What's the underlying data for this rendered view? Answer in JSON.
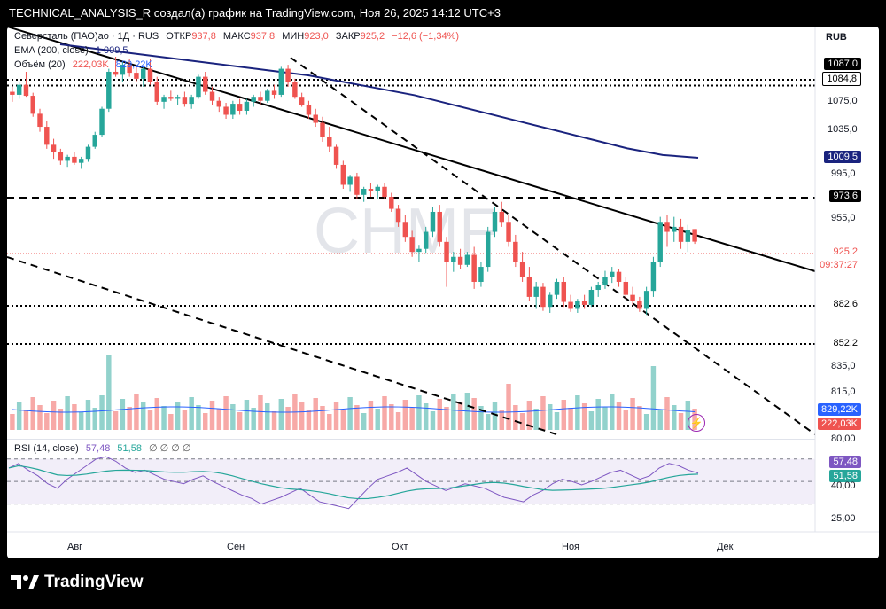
{
  "header": {
    "title": "TECHNICAL_ANALYSIS_R создал(а) график на TradingView.com, Ноя 26, 2025 14:12 UTC+3"
  },
  "legend": {
    "symbol": "Северсталь (ПАО)ао · 1Д · RUS",
    "open_label": "ОТКР",
    "open": "937,8",
    "high_label": "МАКС",
    "high": "937,8",
    "low_label": "МИН",
    "low": "923,0",
    "close_label": "ЗАКР",
    "close": "925,2",
    "change": "−12,6 (−1,34%)",
    "ema_label": "EMA (200, close)",
    "ema_value": "1 009,5",
    "vol_label": "Объём (20)",
    "vol_value": "222,03K",
    "vol_ma": "829,22K",
    "rsi_label": "RSI (14, close)",
    "rsi_value": "57,48",
    "rsi_ma": "51,58",
    "rsi_extra": "∅ ∅ ∅ ∅"
  },
  "currency": "RUB",
  "watermark": "CHMF",
  "price_axis": {
    "ticks": [
      "1075,0",
      "1035,0",
      "995,0",
      "955,0",
      "835,0",
      "815,0",
      "80,00",
      "40,00",
      "25,00"
    ],
    "boxes": [
      "1087,0",
      "1084,8",
      "1009,5",
      "973,6",
      "925,2",
      "09:37:27",
      "882,6",
      "852,2",
      "829,22K",
      "222,03K",
      "57,48",
      "51,58"
    ]
  },
  "time_axis": [
    "Авг",
    "Сен",
    "Окт",
    "Ноя",
    "Дек"
  ],
  "footer": {
    "brand": "TradingView"
  },
  "colors": {
    "up": "#26a69a",
    "down": "#ef5350",
    "ema": "#1a237e",
    "vol_ma": "#2962ff",
    "rsi": "#7e57c2",
    "rsi_ma": "#26a69a",
    "close_line": "#ef5350"
  },
  "chart_data": {
    "type": "candlestick",
    "title": "Северсталь (ПАО)ао · 1Д · RUS",
    "price_range": [
      800,
      1100
    ],
    "x_labels": [
      "Авг",
      "Сен",
      "Окт",
      "Ноя",
      "Дек"
    ],
    "candles": [
      [
        1075,
        1080,
        1065,
        1072
      ],
      [
        1072,
        1085,
        1068,
        1082
      ],
      [
        1082,
        1095,
        1070,
        1071
      ],
      [
        1071,
        1074,
        1050,
        1053
      ],
      [
        1053,
        1058,
        1035,
        1040
      ],
      [
        1040,
        1046,
        1018,
        1022
      ],
      [
        1022,
        1028,
        1008,
        1015
      ],
      [
        1015,
        1018,
        1002,
        1006
      ],
      [
        1006,
        1012,
        1000,
        1010
      ],
      [
        1010,
        1015,
        1002,
        1004
      ],
      [
        1004,
        1010,
        998,
        1008
      ],
      [
        1008,
        1022,
        1005,
        1020
      ],
      [
        1020,
        1035,
        1018,
        1032
      ],
      [
        1032,
        1060,
        1030,
        1058
      ],
      [
        1058,
        1098,
        1055,
        1095
      ],
      [
        1095,
        1110,
        1090,
        1092
      ],
      [
        1092,
        1105,
        1085,
        1102
      ],
      [
        1102,
        1108,
        1090,
        1094
      ],
      [
        1094,
        1100,
        1085,
        1088
      ],
      [
        1088,
        1100,
        1080,
        1098
      ],
      [
        1098,
        1108,
        1082,
        1085
      ],
      [
        1085,
        1090,
        1062,
        1065
      ],
      [
        1065,
        1072,
        1058,
        1070
      ],
      [
        1070,
        1076,
        1066,
        1068
      ],
      [
        1068,
        1072,
        1062,
        1070
      ],
      [
        1070,
        1075,
        1060,
        1063
      ],
      [
        1063,
        1072,
        1058,
        1070
      ],
      [
        1070,
        1092,
        1068,
        1090
      ],
      [
        1090,
        1095,
        1072,
        1075
      ],
      [
        1075,
        1080,
        1062,
        1066
      ],
      [
        1066,
        1070,
        1055,
        1060
      ],
      [
        1060,
        1064,
        1048,
        1052
      ],
      [
        1052,
        1066,
        1048,
        1063
      ],
      [
        1063,
        1068,
        1052,
        1056
      ],
      [
        1056,
        1068,
        1052,
        1065
      ],
      [
        1065,
        1072,
        1060,
        1070
      ],
      [
        1070,
        1075,
        1062,
        1066
      ],
      [
        1066,
        1078,
        1064,
        1076
      ],
      [
        1076,
        1082,
        1068,
        1072
      ],
      [
        1072,
        1100,
        1070,
        1098
      ],
      [
        1098,
        1102,
        1080,
        1085
      ],
      [
        1085,
        1088,
        1068,
        1070
      ],
      [
        1070,
        1074,
        1060,
        1062
      ],
      [
        1062,
        1066,
        1048,
        1052
      ],
      [
        1052,
        1058,
        1040,
        1044
      ],
      [
        1044,
        1050,
        1025,
        1030
      ],
      [
        1030,
        1040,
        1015,
        1020
      ],
      [
        1020,
        1022,
        998,
        1002
      ],
      [
        1002,
        1006,
        978,
        982
      ],
      [
        982,
        992,
        975,
        990
      ],
      [
        990,
        994,
        968,
        972
      ],
      [
        972,
        980,
        965,
        978
      ],
      [
        978,
        984,
        970,
        976
      ],
      [
        976,
        982,
        968,
        980
      ],
      [
        980,
        984,
        968,
        970
      ],
      [
        970,
        974,
        955,
        958
      ],
      [
        958,
        962,
        940,
        945
      ],
      [
        945,
        952,
        925,
        930
      ],
      [
        930,
        936,
        910,
        915
      ],
      [
        915,
        922,
        905,
        918
      ],
      [
        918,
        940,
        914,
        935
      ],
      [
        935,
        960,
        930,
        955
      ],
      [
        955,
        962,
        920,
        925
      ],
      [
        925,
        930,
        880,
        905
      ],
      [
        905,
        915,
        895,
        910
      ],
      [
        910,
        918,
        898,
        902
      ],
      [
        902,
        915,
        900,
        912
      ],
      [
        912,
        920,
        878,
        885
      ],
      [
        885,
        905,
        880,
        900
      ],
      [
        900,
        940,
        895,
        935
      ],
      [
        935,
        960,
        930,
        955
      ],
      [
        955,
        965,
        940,
        945
      ],
      [
        945,
        952,
        920,
        925
      ],
      [
        925,
        932,
        900,
        905
      ],
      [
        905,
        915,
        885,
        890
      ],
      [
        890,
        900,
        866,
        870
      ],
      [
        870,
        885,
        858,
        880
      ],
      [
        880,
        884,
        856,
        860
      ],
      [
        860,
        875,
        854,
        872
      ],
      [
        872,
        888,
        868,
        885
      ],
      [
        885,
        890,
        860,
        865
      ],
      [
        865,
        872,
        855,
        858
      ],
      [
        858,
        868,
        854,
        866
      ],
      [
        866,
        872,
        858,
        862
      ],
      [
        862,
        880,
        860,
        877
      ],
      [
        877,
        885,
        870,
        882
      ],
      [
        882,
        896,
        878,
        890
      ],
      [
        890,
        900,
        884,
        895
      ],
      [
        895,
        898,
        880,
        885
      ],
      [
        885,
        890,
        868,
        872
      ],
      [
        872,
        880,
        862,
        866
      ],
      [
        866,
        870,
        855,
        858
      ],
      [
        858,
        880,
        852,
        876
      ],
      [
        876,
        910,
        870,
        905
      ],
      [
        905,
        950,
        900,
        945
      ],
      [
        945,
        952,
        920,
        935
      ],
      [
        935,
        950,
        925,
        940
      ],
      [
        940,
        948,
        918,
        925
      ],
      [
        925,
        942,
        915,
        937
      ],
      [
        937.8,
        937.8,
        923,
        925.2
      ]
    ],
    "ema200": [
      1112,
      1108,
      1104,
      1100,
      1096,
      1092,
      1088,
      1084,
      1078,
      1072,
      1066,
      1058,
      1050,
      1042,
      1034,
      1026,
      1018,
      1012,
      1009.5
    ],
    "hlines": [
      1087.0,
      1084.8,
      973.6,
      882.6,
      852.2
    ],
    "volume_ma": "829,22K",
    "volume_last": "222,03K",
    "rsi": [
      62,
      66,
      60,
      55,
      48,
      44,
      52,
      58,
      64,
      70,
      72,
      68,
      62,
      58,
      60,
      56,
      52,
      50,
      48,
      52,
      55,
      50,
      46,
      42,
      38,
      35,
      30,
      33,
      36,
      40,
      44,
      38,
      32,
      30,
      28,
      26,
      35,
      44,
      52,
      55,
      58,
      62,
      56,
      50,
      46,
      42,
      45,
      48,
      46,
      44,
      40,
      36,
      34,
      32,
      38,
      42,
      48,
      52,
      50,
      47,
      50,
      54,
      58,
      60,
      56,
      52,
      55,
      62,
      66,
      64,
      60,
      57.48
    ],
    "rsi_ma": 51.58,
    "rsi_range": [
      0,
      100
    ],
    "rsi_levels": [
      70,
      50,
      30
    ]
  }
}
